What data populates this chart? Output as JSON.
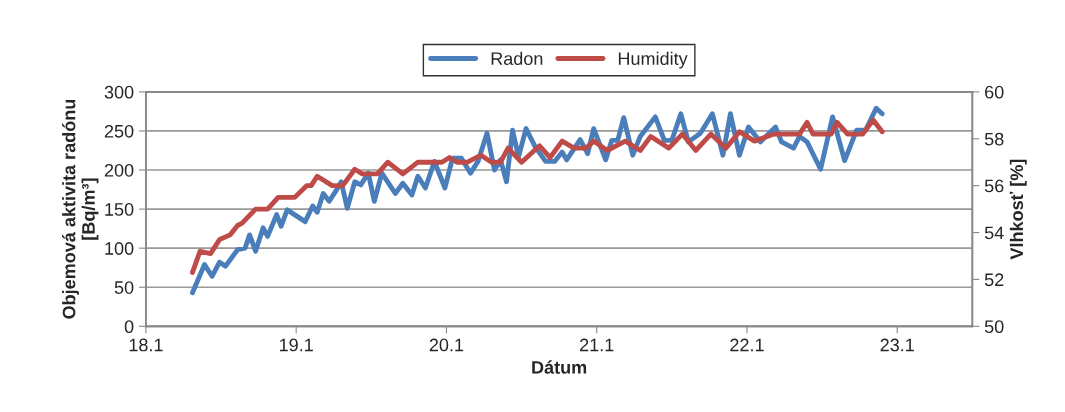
{
  "chart_data": {
    "type": "line",
    "xlabel": "Dátum",
    "ylabel": "Objemová aktivita radónu\n[Bq/m³]",
    "y2label": "Vlhkosť [%]",
    "xlim": [
      18.1,
      23.6
    ],
    "xticks": [
      18.1,
      19.1,
      20.1,
      21.1,
      22.1,
      23.1
    ],
    "ylim": [
      0,
      300
    ],
    "yticks": [
      0,
      50,
      100,
      150,
      200,
      250,
      300
    ],
    "y2lim": [
      50,
      60
    ],
    "y2ticks": [
      50,
      52,
      54,
      56,
      58,
      60
    ],
    "grid": "y",
    "legend": "top",
    "marker": "none",
    "line_style": "solid",
    "series": [
      {
        "name": "Radon",
        "color": "#4a7ebb",
        "x": [
          18.41,
          18.49,
          18.54,
          18.59,
          18.63,
          18.71,
          18.76,
          18.79,
          18.83,
          18.88,
          18.91,
          18.97,
          19.0,
          19.04,
          19.16,
          19.21,
          19.24,
          19.28,
          19.32,
          19.36,
          19.4,
          19.44,
          19.49,
          19.53,
          19.58,
          19.62,
          19.67,
          19.76,
          19.81,
          19.87,
          19.91,
          19.96,
          20.02,
          20.09,
          20.14,
          20.2,
          20.26,
          20.31,
          20.37,
          20.42,
          20.46,
          20.5,
          20.54,
          20.58,
          20.63,
          20.69,
          20.76,
          20.82,
          20.87,
          20.9,
          20.99,
          21.04,
          21.08,
          21.16,
          21.2,
          21.24,
          21.28,
          21.34,
          21.39,
          21.49,
          21.55,
          21.6,
          21.66,
          21.71,
          21.79,
          21.87,
          21.94,
          21.99,
          22.05,
          22.11,
          22.19,
          22.29,
          22.33,
          22.41,
          22.45,
          22.5,
          22.59,
          22.67,
          22.75,
          22.83,
          22.89,
          22.96,
          23.0
        ],
        "values": [
          43,
          79,
          64,
          82,
          77,
          98,
          100,
          117,
          96,
          126,
          115,
          143,
          128,
          149,
          134,
          154,
          146,
          170,
          160,
          172,
          185,
          151,
          185,
          181,
          196,
          160,
          196,
          170,
          183,
          168,
          192,
          177,
          211,
          177,
          215,
          215,
          196,
          211,
          247,
          200,
          213,
          185,
          251,
          217,
          253,
          230,
          211,
          211,
          223,
          213,
          239,
          221,
          253,
          213,
          238,
          238,
          267,
          219,
          243,
          268,
          238,
          238,
          272,
          236,
          247,
          272,
          219,
          272,
          219,
          255,
          236,
          255,
          236,
          228,
          243,
          236,
          201,
          268,
          212,
          251,
          251,
          279,
          272
        ]
      },
      {
        "name": "Humidity",
        "color": "#be4b48",
        "axis": "y2",
        "x": [
          18.41,
          18.46,
          18.53,
          18.59,
          18.66,
          18.71,
          18.74,
          18.83,
          18.91,
          18.98,
          19.09,
          19.17,
          19.2,
          19.24,
          19.34,
          19.41,
          19.49,
          19.54,
          19.64,
          19.71,
          19.81,
          19.91,
          20.07,
          20.12,
          20.17,
          20.24,
          20.33,
          20.4,
          20.46,
          20.51,
          20.6,
          20.72,
          20.79,
          20.87,
          20.95,
          21.03,
          21.08,
          21.17,
          21.29,
          21.39,
          21.46,
          21.58,
          21.67,
          21.76,
          21.86,
          21.96,
          22.05,
          22.15,
          22.28,
          22.45,
          22.5,
          22.54,
          22.66,
          22.7,
          22.77,
          22.87,
          22.94,
          23.0
        ],
        "values": [
          52.3,
          53.2,
          53.1,
          53.7,
          53.9,
          54.3,
          54.4,
          55.0,
          55.0,
          55.5,
          55.5,
          56.0,
          56.0,
          56.4,
          56.0,
          56.0,
          56.7,
          56.5,
          56.5,
          57.0,
          56.5,
          57.0,
          57.0,
          57.2,
          57.0,
          57.0,
          57.3,
          57.0,
          57.0,
          57.6,
          57.0,
          57.7,
          57.2,
          57.9,
          57.6,
          57.6,
          57.9,
          57.5,
          57.9,
          57.5,
          58.1,
          57.6,
          58.2,
          57.5,
          58.2,
          57.6,
          58.3,
          57.9,
          58.2,
          58.2,
          58.7,
          58.2,
          58.2,
          58.7,
          58.2,
          58.2,
          58.8,
          58.3
        ]
      }
    ]
  }
}
